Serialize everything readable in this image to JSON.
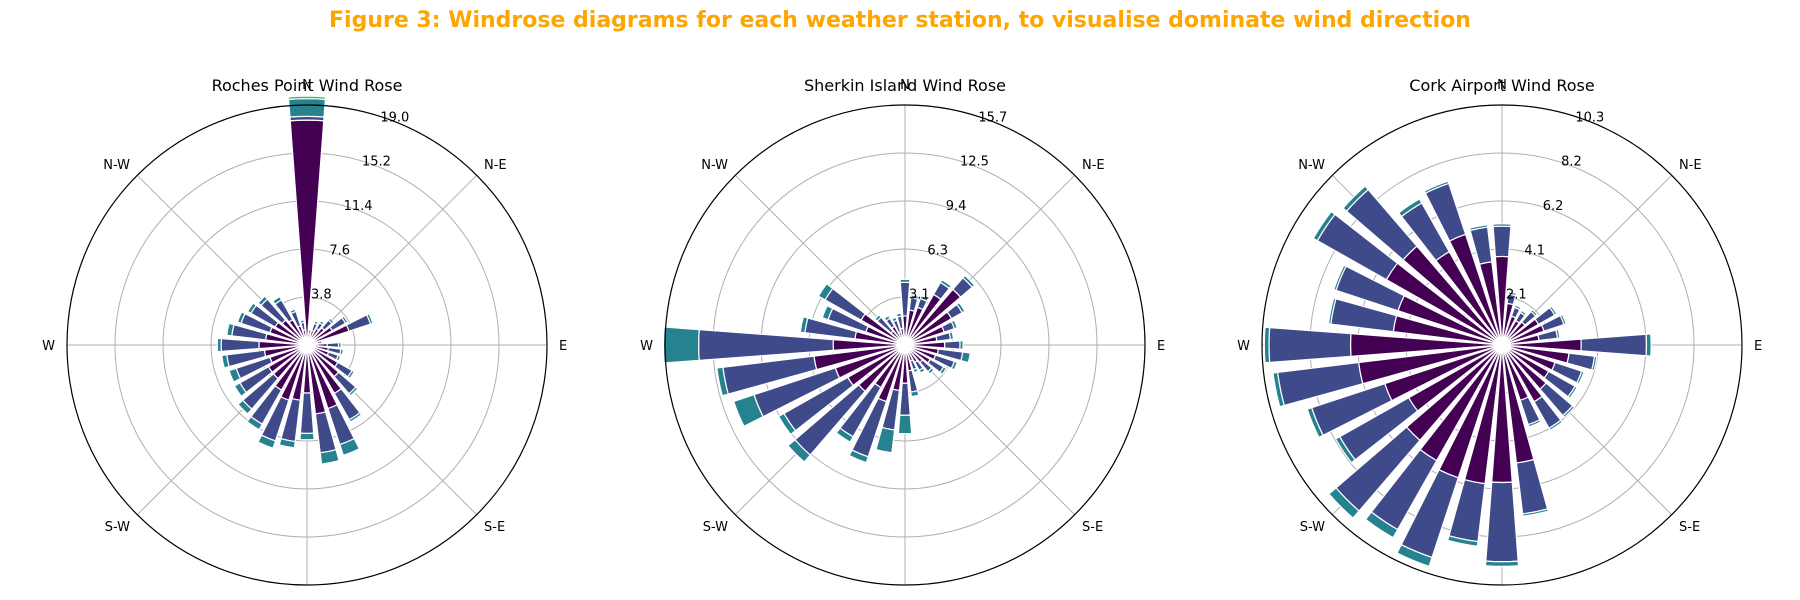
{
  "figure": {
    "title": "Figure 3: Windrose diagrams for each weather station, to visualise dominate wind direction",
    "title_color": "#ffa500"
  },
  "colors": {
    "layer_0": "#440154",
    "layer_1": "#3e4a89",
    "layer_2": "#26828e",
    "layer_3": "#35b779",
    "grid": "#b0b0b0",
    "bar_edge": "#ffffff"
  },
  "chart_data": [
    {
      "type": "windrose",
      "title": "Roches Point Wind Rose",
      "directions": [
        "N",
        "N-E",
        "E",
        "S-E",
        "S",
        "S-W",
        "W",
        "N-W"
      ],
      "radial_ticks": [
        "3.8",
        "7.6",
        "11.4",
        "15.2",
        "19.0"
      ],
      "rmax": 19.0,
      "sectors": [
        [
          17.8,
          0.3,
          1.4,
          0.2
        ],
        [
          0.9,
          0.3,
          0.1,
          0
        ],
        [
          1.2,
          0.6,
          0.2,
          0
        ],
        [
          1.5,
          0.5,
          0.2,
          0
        ],
        [
          1.8,
          0.8,
          0.2,
          0
        ],
        [
          2.3,
          1.2,
          0.2,
          0
        ],
        [
          3.5,
          1.8,
          0.2,
          0
        ],
        [
          0.8,
          0.4,
          0.1,
          0
        ],
        [
          1.6,
          0.9,
          0.2,
          0
        ],
        [
          1.7,
          1.0,
          0.2,
          0
        ],
        [
          1.8,
          0.8,
          0.2,
          0
        ],
        [
          2.8,
          1.3,
          0.2,
          0
        ],
        [
          3.3,
          1.8,
          0.2,
          0
        ],
        [
          4.4,
          2.4,
          0.2,
          0
        ],
        [
          5.3,
          3.0,
          0.9,
          0
        ],
        [
          5.5,
          3.1,
          0.9,
          0
        ],
        [
          3.8,
          3.2,
          0.5,
          0
        ],
        [
          4.4,
          3.3,
          0.5,
          0
        ],
        [
          4.6,
          3.4,
          0.6,
          0
        ],
        [
          4.1,
          3.1,
          0.5,
          0
        ],
        [
          3.5,
          3.2,
          0.5,
          0
        ],
        [
          3.5,
          2.6,
          0.5,
          0
        ],
        [
          3.1,
          2.8,
          0.6,
          0
        ],
        [
          3.4,
          3.0,
          0.4,
          0
        ],
        [
          3.8,
          3.0,
          0.3,
          0
        ],
        [
          3.3,
          2.7,
          0.4,
          0
        ],
        [
          3.1,
          2.4,
          0.3,
          0
        ],
        [
          2.9,
          2.2,
          0.3,
          0
        ],
        [
          2.6,
          2.2,
          0.3,
          0
        ],
        [
          2.3,
          1.8,
          0.3,
          0
        ],
        [
          1.6,
          1.2,
          0.2,
          0
        ],
        [
          1.2,
          0.6,
          0.2,
          0
        ]
      ]
    },
    {
      "type": "windrose",
      "title": "Sherkin Island Wind Rose",
      "directions": [
        "N",
        "N-E",
        "E",
        "S-E",
        "S",
        "S-W",
        "W",
        "N-W"
      ],
      "radial_ticks": [
        "3.1",
        "6.3",
        "9.4",
        "12.5",
        "15.7"
      ],
      "rmax": 15.7,
      "sectors": [
        [
          1.9,
          2.2,
          0.2,
          0
        ],
        [
          2.3,
          0.8,
          0.2,
          0
        ],
        [
          2.6,
          0.6,
          0.2,
          0
        ],
        [
          3.8,
          0.9,
          0.2,
          0
        ],
        [
          4.8,
          1.0,
          0.2,
          0
        ],
        [
          3.5,
          0.8,
          0.2,
          0
        ],
        [
          2.7,
          0.7,
          0.2,
          0
        ],
        [
          2.1,
          0.9,
          0.2,
          0
        ],
        [
          2.6,
          1.0,
          0.2,
          0
        ],
        [
          2.2,
          1.6,
          0.5,
          0
        ],
        [
          2.1,
          1.3,
          0.2,
          0
        ],
        [
          1.9,
          1.0,
          0.2,
          0
        ],
        [
          1.5,
          0.8,
          0.2,
          0
        ],
        [
          1.3,
          0.6,
          0.2,
          0
        ],
        [
          1.1,
          0.6,
          0.2,
          0
        ],
        [
          1.7,
          1.4,
          0.3,
          0
        ],
        [
          2.5,
          2.1,
          1.2,
          0
        ],
        [
          3.0,
          2.6,
          1.5,
          0
        ],
        [
          3.9,
          3.8,
          0.4,
          0
        ],
        [
          3.2,
          3.7,
          0.4,
          0
        ],
        [
          4.0,
          5.5,
          0.6,
          0
        ],
        [
          4.3,
          4.8,
          0.4,
          0
        ],
        [
          4.8,
          5.6,
          1.4,
          0
        ],
        [
          6.0,
          6.0,
          0.4,
          0
        ],
        [
          4.7,
          8.8,
          2.3,
          0
        ],
        [
          3.3,
          3.3,
          0.3,
          0
        ],
        [
          2.7,
          2.6,
          0.4,
          0
        ],
        [
          3.3,
          2.7,
          0.5,
          0
        ],
        [
          1.2,
          1.2,
          0.2,
          0
        ],
        [
          1.4,
          0.6,
          0.2,
          0
        ],
        [
          0.9,
          0.8,
          0.2,
          0
        ],
        [
          1.1,
          0.8,
          0.2,
          0
        ]
      ]
    },
    {
      "type": "windrose",
      "title": "Cork Airport Wind Rose",
      "directions": [
        "N",
        "N-E",
        "E",
        "S-E",
        "S",
        "S-W",
        "W",
        "N-W"
      ],
      "radial_ticks": [
        "2.1",
        "4.1",
        "6.2",
        "8.2",
        "10.3"
      ],
      "rmax": 10.3,
      "sectors": [
        [
          3.8,
          1.3,
          0.1,
          0
        ],
        [
          1.8,
          0.4,
          0.1,
          0
        ],
        [
          1.3,
          0.4,
          0.1,
          0
        ],
        [
          1.2,
          0.4,
          0.1,
          0
        ],
        [
          1.3,
          0.6,
          0.1,
          0
        ],
        [
          1.8,
          0.8,
          0.1,
          0
        ],
        [
          1.9,
          0.9,
          0.1,
          0
        ],
        [
          1.6,
          0.8,
          0.1,
          0
        ],
        [
          3.4,
          2.8,
          0.2,
          0
        ],
        [
          2.9,
          1.1,
          0.1,
          0
        ],
        [
          2.4,
          1.2,
          0.1,
          0
        ],
        [
          2.3,
          1.3,
          0.1,
          0
        ],
        [
          2.5,
          1.5,
          0.1,
          0
        ],
        [
          2.8,
          1.3,
          0.1,
          0
        ],
        [
          2.5,
          1.1,
          0.1,
          0
        ],
        [
          5.1,
          2.2,
          0.1,
          0
        ],
        [
          5.9,
          3.4,
          0.2,
          0
        ],
        [
          6.0,
          2.5,
          0.2,
          0
        ],
        [
          6.0,
          3.6,
          0.4,
          0
        ],
        [
          5.7,
          3.4,
          0.4,
          0
        ],
        [
          5.4,
          4.0,
          0.4,
          0
        ],
        [
          4.6,
          3.4,
          0.2,
          0
        ],
        [
          5.3,
          3.3,
          0.2,
          0
        ],
        [
          6.2,
          3.5,
          0.2,
          0
        ],
        [
          6.5,
          3.5,
          0.2,
          0
        ],
        [
          4.7,
          2.7,
          0.1,
          0
        ],
        [
          4.7,
          2.8,
          0.1,
          0
        ],
        [
          5.7,
          3.4,
          0.2,
          0
        ],
        [
          5.6,
          3.2,
          0.2,
          0
        ],
        [
          4.6,
          2.4,
          0.2,
          0
        ],
        [
          5.0,
          2.3,
          0.1,
          0
        ],
        [
          3.6,
          1.5,
          0.1,
          0
        ]
      ]
    }
  ]
}
